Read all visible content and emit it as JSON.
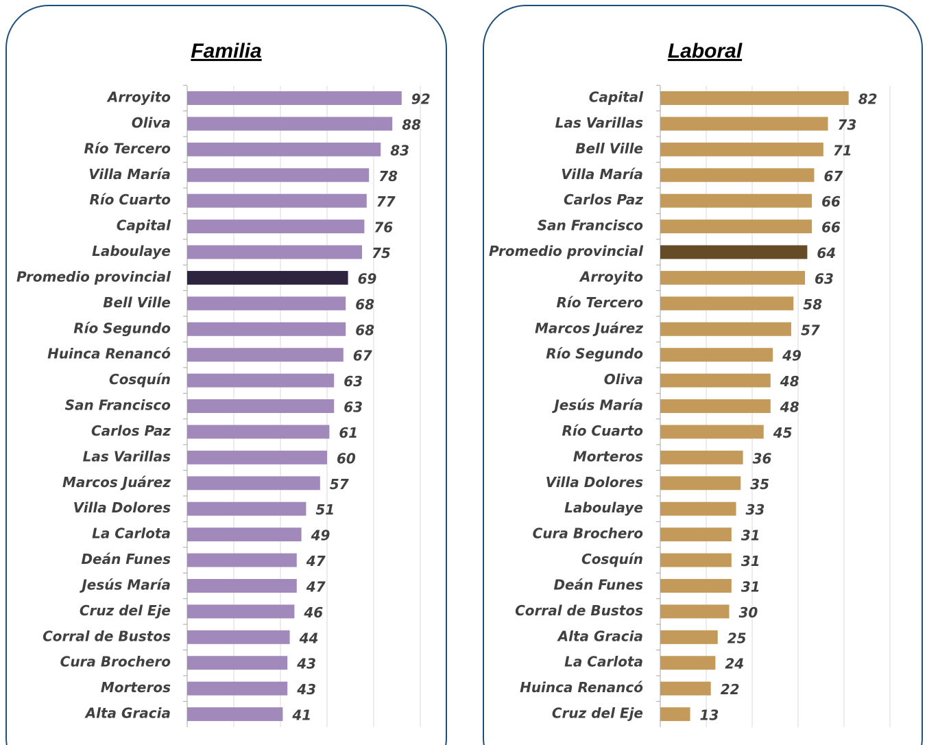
{
  "chart_data": [
    {
      "type": "bar",
      "title": "Familia",
      "categories": [
        "Arroyito",
        "Oliva",
        "Río Tercero",
        "Villa María",
        "Río Cuarto",
        "Capital",
        "Laboulaye",
        "Promedio provincial",
        "Bell Ville",
        "Río Segundo",
        "Huinca Renancó",
        "Cosquín",
        "San Francisco",
        "Carlos Paz",
        "Las Varillas",
        "Marcos Juárez",
        "Villa Dolores",
        "La Carlota",
        "Deán Funes",
        "Jesús María",
        "Cruz del Eje",
        "Corral de Bustos",
        "Cura Brochero",
        "Morteros",
        "Alta Gracia"
      ],
      "values": [
        92,
        88,
        83,
        78,
        77,
        76,
        75,
        69,
        68,
        68,
        67,
        63,
        63,
        61,
        60,
        57,
        51,
        49,
        47,
        47,
        46,
        44,
        43,
        43,
        41
      ],
      "colors": [
        "#a189bb",
        "#a189bb",
        "#a189bb",
        "#a189bb",
        "#a189bb",
        "#a189bb",
        "#a189bb",
        "#2e2440",
        "#a189bb",
        "#a189bb",
        "#a189bb",
        "#a189bb",
        "#a189bb",
        "#a189bb",
        "#a189bb",
        "#a189bb",
        "#a189bb",
        "#a189bb",
        "#a189bb",
        "#a189bb",
        "#a189bb",
        "#a189bb",
        "#a189bb",
        "#a189bb",
        "#a189bb"
      ],
      "xlim": [
        0,
        100
      ],
      "xticks": [
        0,
        20,
        40,
        60,
        80,
        100
      ],
      "grid": true
    },
    {
      "type": "bar",
      "title": "Laboral",
      "categories": [
        "Capital",
        "Las Varillas",
        "Bell Ville",
        "Villa María",
        "Carlos Paz",
        "San Francisco",
        "Promedio provincial",
        "Arroyito",
        "Río Tercero",
        "Marcos Juárez",
        "Río Segundo",
        "Oliva",
        "Jesús María",
        "Río Cuarto",
        "Morteros",
        "Villa Dolores",
        "Laboulaye",
        "Cura Brochero",
        "Cosquín",
        "Deán Funes",
        "Corral de Bustos",
        "Alta Gracia",
        "La Carlota",
        "Huinca Renancó",
        "Cruz del Eje"
      ],
      "values": [
        82,
        73,
        71,
        67,
        66,
        66,
        64,
        63,
        58,
        57,
        49,
        48,
        48,
        45,
        36,
        35,
        33,
        31,
        31,
        31,
        30,
        25,
        24,
        22,
        13
      ],
      "colors": [
        "#c49a5a",
        "#c49a5a",
        "#c49a5a",
        "#c49a5a",
        "#c49a5a",
        "#c49a5a",
        "#654b26",
        "#c49a5a",
        "#c49a5a",
        "#c49a5a",
        "#c49a5a",
        "#c49a5a",
        "#c49a5a",
        "#c49a5a",
        "#c49a5a",
        "#c49a5a",
        "#c49a5a",
        "#c49a5a",
        "#c49a5a",
        "#c49a5a",
        "#c49a5a",
        "#c49a5a",
        "#c49a5a",
        "#c49a5a",
        "#c49a5a"
      ],
      "xlim": [
        0,
        100
      ],
      "xticks": [
        0,
        20,
        40,
        60,
        80,
        100
      ],
      "grid": true
    }
  ]
}
